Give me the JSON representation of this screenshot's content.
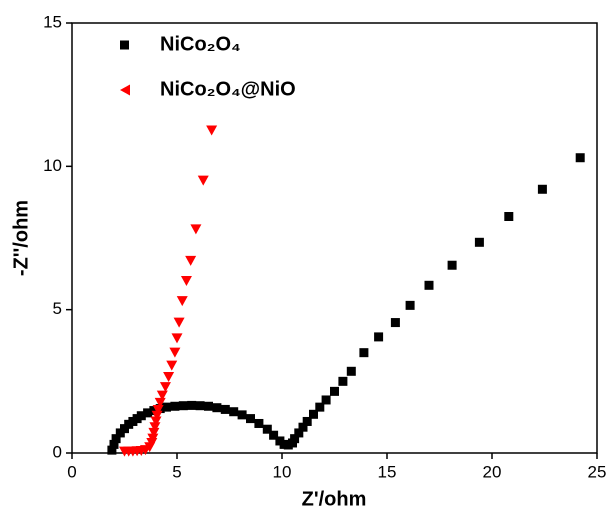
{
  "chart_data": {
    "type": "scatter",
    "xlabel": "Z'/ohm",
    "ylabel": "-Z''/ohm",
    "xlim": [
      0,
      25
    ],
    "ylim": [
      0,
      15
    ],
    "xticks": [
      0,
      5,
      10,
      15,
      20,
      25
    ],
    "yticks": [
      0,
      5,
      10,
      15
    ],
    "series": [
      {
        "name": "NiCo₂O₄",
        "color": "#000000",
        "marker": "square",
        "x": [
          1.9,
          2.0,
          2.1,
          2.3,
          2.5,
          2.7,
          2.9,
          3.1,
          3.3,
          3.6,
          3.9,
          4.2,
          4.5,
          4.9,
          5.3,
          5.7,
          6.1,
          6.5,
          6.9,
          7.3,
          7.7,
          8.1,
          8.5,
          8.9,
          9.3,
          9.6,
          9.9,
          10.1,
          10.3,
          10.5,
          10.6,
          10.8,
          11.0,
          11.2,
          11.5,
          11.8,
          12.1,
          12.5,
          12.9,
          13.3,
          13.9,
          14.6,
          15.4,
          16.1,
          17.0,
          18.1,
          19.4,
          20.8,
          22.4,
          24.2
        ],
        "values": [
          0.1,
          0.3,
          0.5,
          0.7,
          0.85,
          1.0,
          1.1,
          1.2,
          1.3,
          1.4,
          1.48,
          1.55,
          1.6,
          1.63,
          1.65,
          1.66,
          1.65,
          1.63,
          1.58,
          1.52,
          1.44,
          1.33,
          1.2,
          1.03,
          0.83,
          0.62,
          0.42,
          0.3,
          0.28,
          0.35,
          0.5,
          0.7,
          0.9,
          1.1,
          1.35,
          1.6,
          1.85,
          2.15,
          2.5,
          2.85,
          3.5,
          4.05,
          4.55,
          5.15,
          5.85,
          6.55,
          7.35,
          8.25,
          9.2,
          10.3
        ]
      },
      {
        "name": "NiCo₂O₄@NiO",
        "color": "#ff0000",
        "marker": "triangle",
        "x": [
          2.5,
          2.7,
          2.9,
          3.1,
          3.3,
          3.5,
          3.7,
          3.8,
          3.85,
          3.9,
          3.95,
          4.0,
          4.05,
          4.1,
          4.2,
          4.3,
          4.45,
          4.6,
          4.75,
          4.9,
          5.0,
          5.1,
          5.25,
          5.45,
          5.65,
          5.9,
          6.25,
          6.65
        ],
        "values": [
          0.05,
          0.05,
          0.05,
          0.06,
          0.07,
          0.1,
          0.2,
          0.35,
          0.5,
          0.7,
          0.9,
          1.1,
          1.3,
          1.5,
          1.75,
          2.0,
          2.3,
          2.65,
          3.05,
          3.5,
          4.0,
          4.55,
          5.3,
          6.0,
          6.7,
          7.8,
          9.5,
          11.25
        ]
      }
    ]
  }
}
